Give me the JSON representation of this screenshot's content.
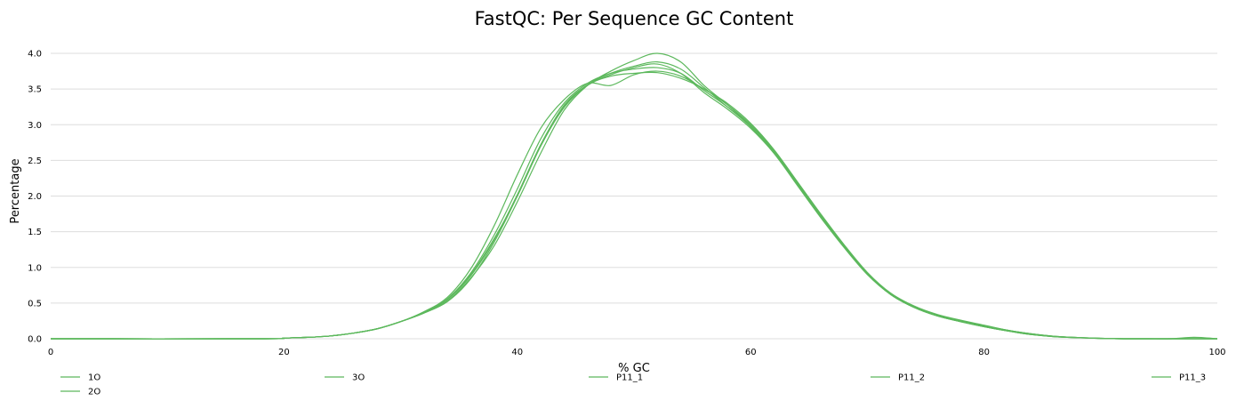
{
  "chart_data": {
    "type": "line",
    "title": "FastQC: Per Sequence GC Content",
    "xlabel": "% GC",
    "ylabel": "Percentage",
    "xlim": [
      0,
      100
    ],
    "ylim": [
      0,
      4.0
    ],
    "x_ticks": [
      0,
      20,
      40,
      60,
      80,
      100
    ],
    "y_ticks": [
      0.0,
      0.5,
      1.0,
      1.5,
      2.0,
      2.5,
      3.0,
      3.5,
      4.0
    ],
    "grid": true,
    "legend_position": "bottom",
    "line_color": "#5cb85c",
    "x": [
      0,
      18,
      20,
      22,
      24,
      26,
      28,
      30,
      32,
      34,
      36,
      38,
      40,
      42,
      44,
      46,
      48,
      50,
      52,
      54,
      56,
      58,
      60,
      62,
      64,
      66,
      68,
      70,
      72,
      74,
      76,
      78,
      80,
      82,
      84,
      86,
      88,
      90,
      92,
      94,
      96,
      98,
      100
    ],
    "series": [
      {
        "name": "1O",
        "values": [
          0,
          0,
          0.01,
          0.02,
          0.04,
          0.08,
          0.14,
          0.24,
          0.37,
          0.55,
          0.9,
          1.4,
          2.0,
          2.7,
          3.25,
          3.55,
          3.7,
          3.8,
          3.85,
          3.72,
          3.45,
          3.22,
          2.95,
          2.6,
          2.15,
          1.7,
          1.28,
          0.9,
          0.62,
          0.44,
          0.32,
          0.24,
          0.17,
          0.11,
          0.06,
          0.03,
          0.015,
          0.005,
          0,
          0,
          0,
          0,
          0
        ]
      },
      {
        "name": "2O",
        "values": [
          0,
          0,
          0.01,
          0.02,
          0.04,
          0.08,
          0.14,
          0.24,
          0.38,
          0.58,
          0.98,
          1.58,
          2.3,
          2.95,
          3.35,
          3.58,
          3.55,
          3.7,
          3.75,
          3.68,
          3.5,
          3.3,
          3.02,
          2.65,
          2.2,
          1.74,
          1.3,
          0.92,
          0.63,
          0.45,
          0.33,
          0.25,
          0.18,
          0.12,
          0.07,
          0.035,
          0.018,
          0.006,
          0,
          0,
          0,
          0,
          0
        ]
      },
      {
        "name": "3O",
        "values": [
          0,
          0,
          0.01,
          0.02,
          0.04,
          0.08,
          0.14,
          0.24,
          0.37,
          0.56,
          0.92,
          1.45,
          2.1,
          2.8,
          3.3,
          3.58,
          3.72,
          3.78,
          3.8,
          3.72,
          3.48,
          3.25,
          2.98,
          2.62,
          2.17,
          1.72,
          1.29,
          0.91,
          0.62,
          0.44,
          0.32,
          0.24,
          0.17,
          0.11,
          0.06,
          0.03,
          0.015,
          0.005,
          0,
          0,
          0,
          0,
          0
        ]
      },
      {
        "name": "P11_1",
        "values": [
          0,
          0,
          0.01,
          0.02,
          0.04,
          0.08,
          0.14,
          0.24,
          0.36,
          0.53,
          0.85,
          1.3,
          1.92,
          2.6,
          3.2,
          3.55,
          3.75,
          3.9,
          4.0,
          3.88,
          3.55,
          3.28,
          2.98,
          2.62,
          2.18,
          1.73,
          1.3,
          0.92,
          0.63,
          0.45,
          0.33,
          0.25,
          0.18,
          0.12,
          0.07,
          0.035,
          0.018,
          0.006,
          0,
          0,
          0,
          0.02,
          0
        ]
      },
      {
        "name": "P11_2",
        "values": [
          0,
          0,
          0.01,
          0.02,
          0.04,
          0.08,
          0.14,
          0.24,
          0.37,
          0.55,
          0.88,
          1.38,
          2.02,
          2.72,
          3.27,
          3.56,
          3.72,
          3.82,
          3.88,
          3.78,
          3.52,
          3.25,
          2.97,
          2.6,
          2.16,
          1.71,
          1.29,
          0.91,
          0.62,
          0.44,
          0.32,
          0.24,
          0.17,
          0.11,
          0.06,
          0.03,
          0.015,
          0.005,
          0,
          0,
          0,
          0,
          0
        ]
      },
      {
        "name": "P11_3",
        "values": [
          0,
          0,
          0.01,
          0.02,
          0.04,
          0.08,
          0.14,
          0.24,
          0.36,
          0.52,
          0.84,
          1.35,
          2.0,
          2.7,
          3.24,
          3.55,
          3.68,
          3.72,
          3.73,
          3.65,
          3.5,
          3.28,
          3.0,
          2.64,
          2.2,
          1.75,
          1.32,
          0.93,
          0.64,
          0.46,
          0.34,
          0.26,
          0.19,
          0.12,
          0.07,
          0.035,
          0.018,
          0.006,
          0,
          0,
          0,
          0,
          0
        ]
      }
    ]
  }
}
